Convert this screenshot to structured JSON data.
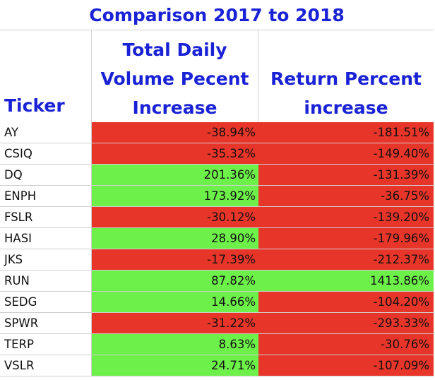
{
  "title": "Comparison 2017 to 2018",
  "headers": {
    "ticker": "Ticker",
    "volume_line1": "Total Daily",
    "volume_line2": "Volume Pecent",
    "volume_line3": "Increase",
    "return_line1": "Return Percent",
    "return_line2": "increase"
  },
  "colors": {
    "negative": "#e8352a",
    "positive": "#6ef04a",
    "header_text": "#1a22d6"
  },
  "rows": [
    {
      "ticker": "AY",
      "volume": "-38.94%",
      "return": "-181.51%"
    },
    {
      "ticker": "CSIQ",
      "volume": "-35.32%",
      "return": "-149.40%"
    },
    {
      "ticker": "DQ",
      "volume": "201.36%",
      "return": "-131.39%"
    },
    {
      "ticker": "ENPH",
      "volume": "173.92%",
      "return": "-36.75%"
    },
    {
      "ticker": "FSLR",
      "volume": "-30.12%",
      "return": "-139.20%"
    },
    {
      "ticker": "HASI",
      "volume": "28.90%",
      "return": "-179.96%"
    },
    {
      "ticker": "JKS",
      "volume": "-17.39%",
      "return": "-212.37%"
    },
    {
      "ticker": "RUN",
      "volume": "87.82%",
      "return": "1413.86%"
    },
    {
      "ticker": "SEDG",
      "volume": "14.66%",
      "return": "-104.20%"
    },
    {
      "ticker": "SPWR",
      "volume": "-31.22%",
      "return": "-293.33%"
    },
    {
      "ticker": "TERP",
      "volume": "8.63%",
      "return": "-30.76%"
    },
    {
      "ticker": "VSLR",
      "volume": "24.71%",
      "return": "-107.09%"
    }
  ]
}
